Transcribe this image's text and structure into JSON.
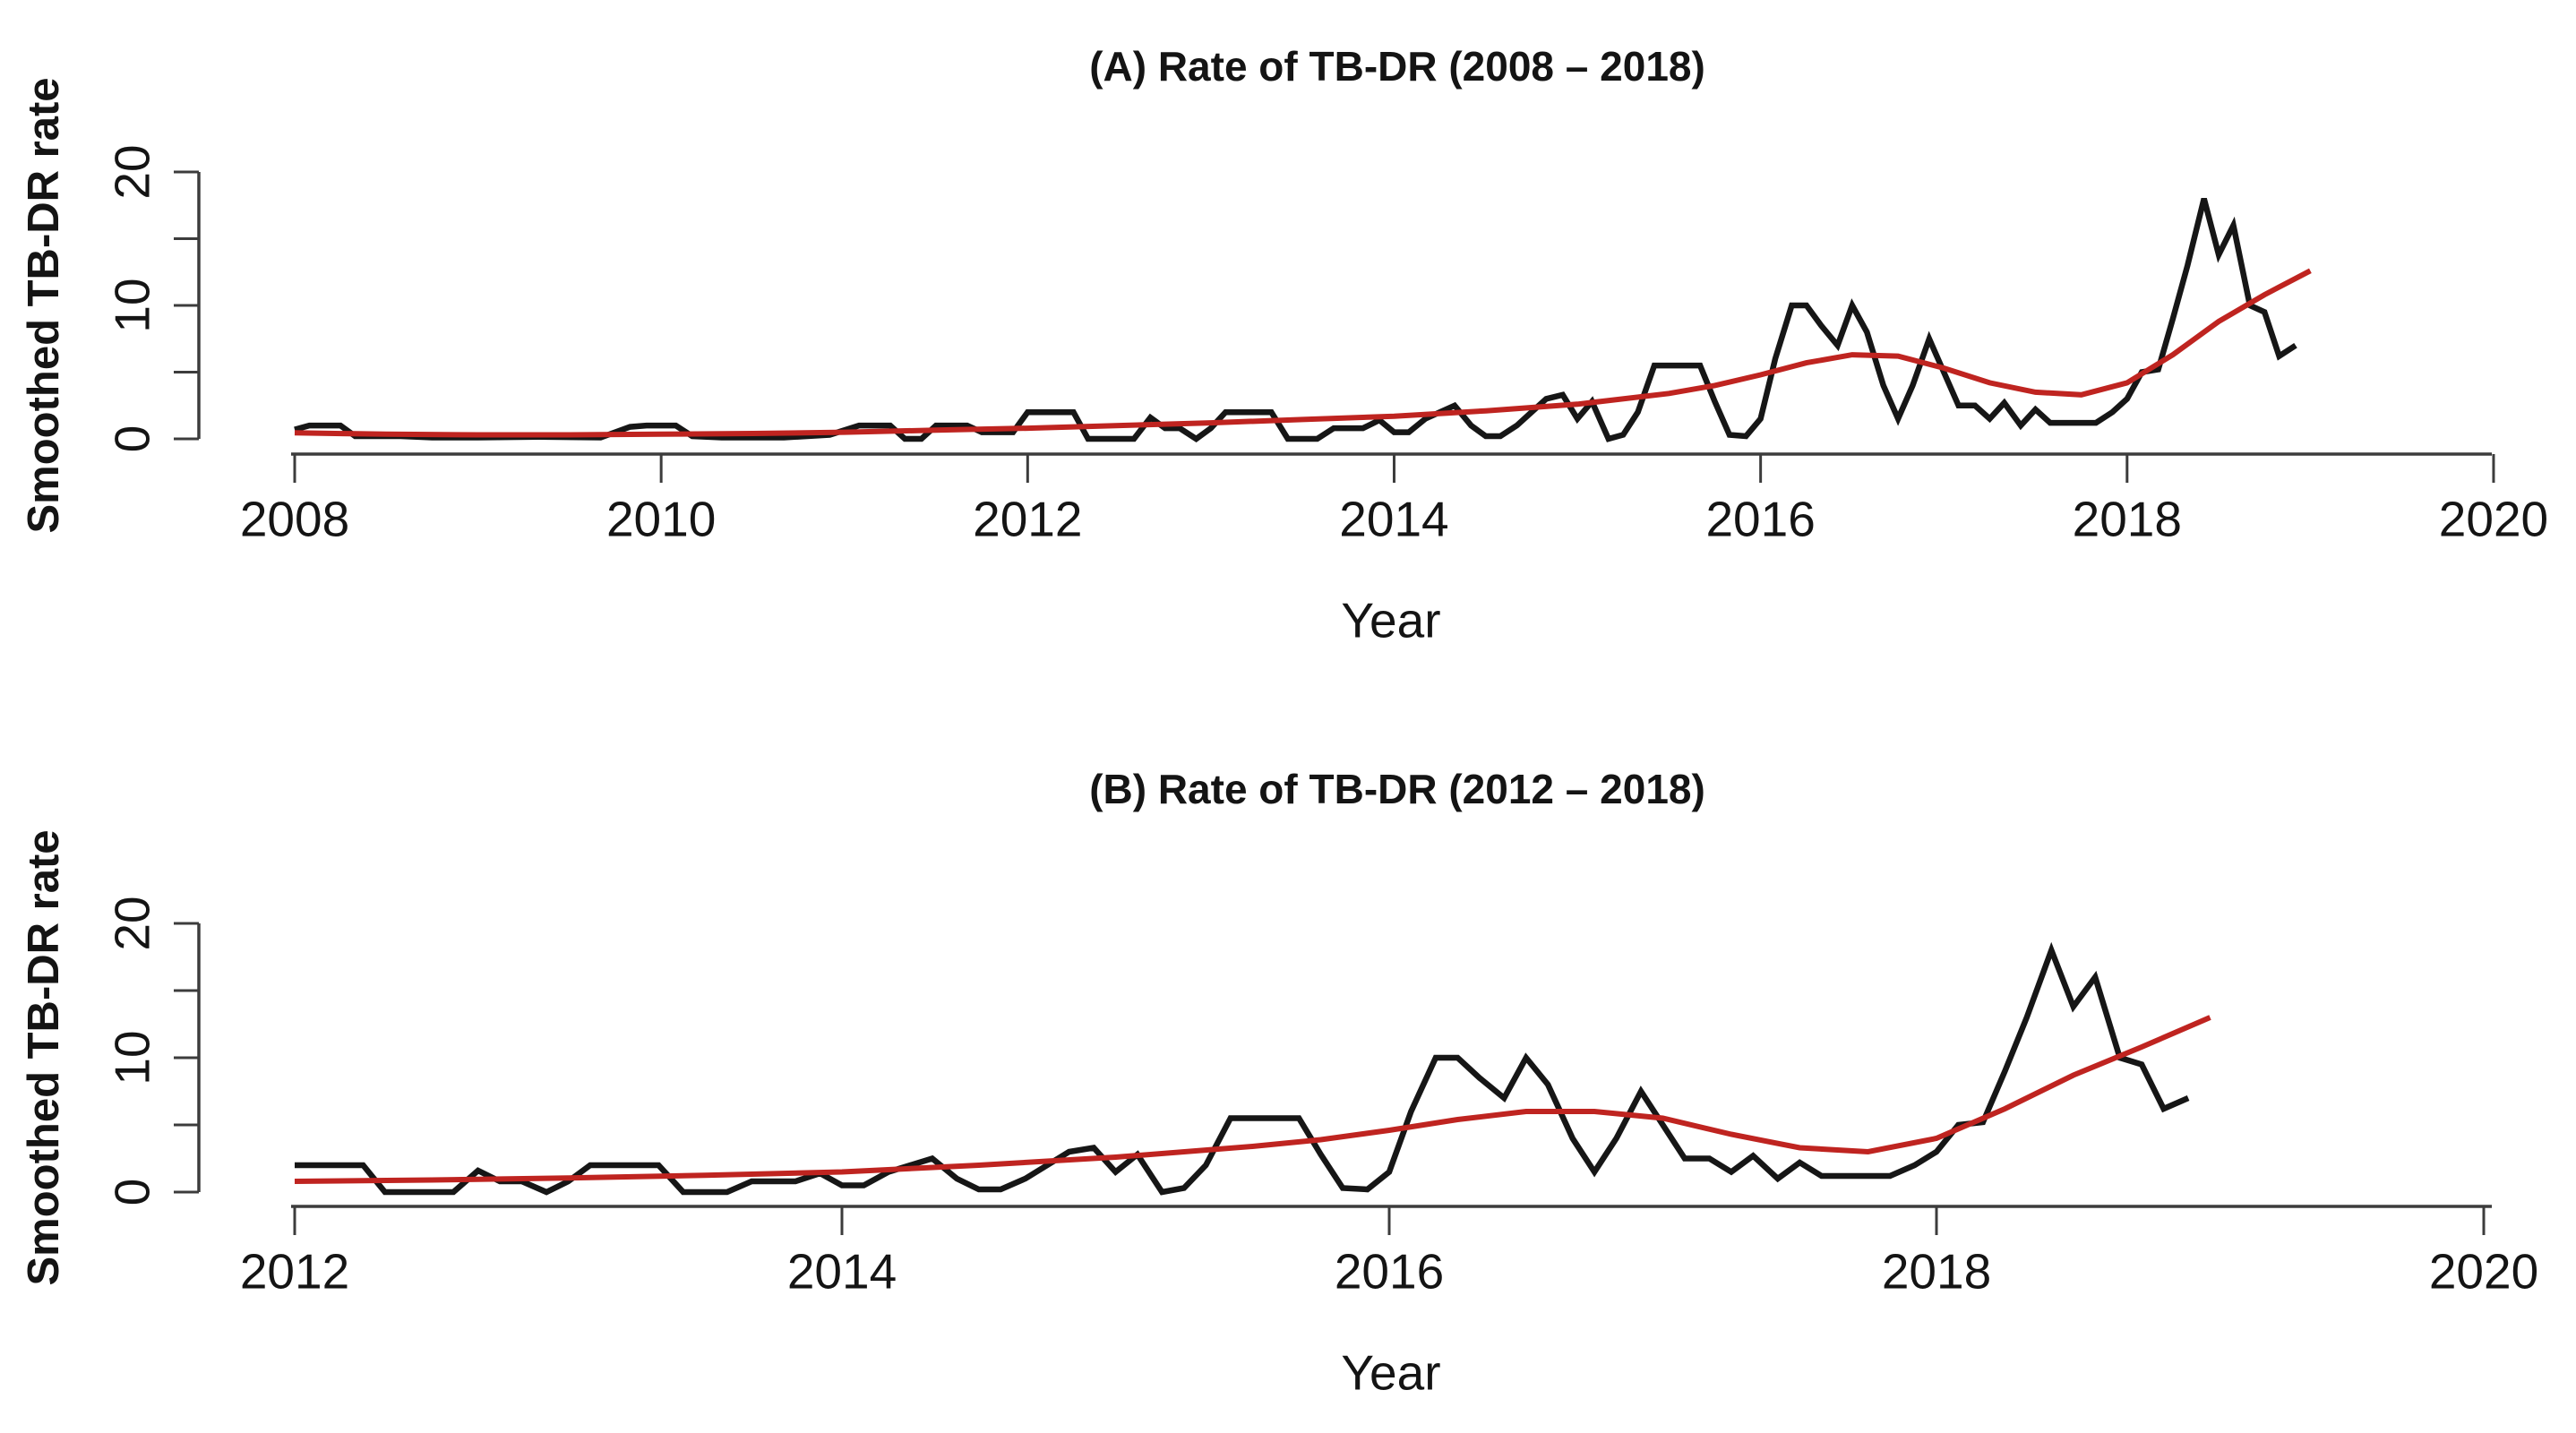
{
  "figure": {
    "background": "#ffffff",
    "colors": {
      "observed_line": "#161616",
      "smoothed_line": "#bf2420",
      "axis": "#3c3c3c",
      "text": "#141414"
    }
  },
  "chart_data": [
    {
      "type": "line",
      "title": "(A) Rate of TB-DR (2008 – 2018)",
      "xlabel": "Year",
      "ylabel": "Smoothed TB-DR rate",
      "xlim": [
        2008,
        2020
      ],
      "ylim": [
        0,
        20
      ],
      "x_ticks": [
        2008,
        2010,
        2012,
        2014,
        2016,
        2018,
        2020
      ],
      "y_ticks": [
        0,
        10,
        20
      ],
      "y_minor_ticks": [
        5,
        15
      ],
      "grid": false,
      "legend": "none",
      "series": [
        {
          "name": "observed-rate",
          "color": "#161616",
          "points": [
            [
              2008.0,
              0.7
            ],
            [
              2008.08,
              1
            ],
            [
              2008.17,
              1
            ],
            [
              2008.25,
              1
            ],
            [
              2008.33,
              0.2
            ],
            [
              2008.58,
              0.2
            ],
            [
              2008.75,
              0.1
            ],
            [
              2009.0,
              0.1
            ],
            [
              2009.33,
              0.15
            ],
            [
              2009.67,
              0.1
            ],
            [
              2009.83,
              0.9
            ],
            [
              2009.92,
              1
            ],
            [
              2010.08,
              1
            ],
            [
              2010.17,
              0.2
            ],
            [
              2010.33,
              0.1
            ],
            [
              2010.67,
              0.1
            ],
            [
              2010.92,
              0.3
            ],
            [
              2011.08,
              1
            ],
            [
              2011.17,
              1
            ],
            [
              2011.25,
              1
            ],
            [
              2011.33,
              0
            ],
            [
              2011.42,
              0
            ],
            [
              2011.5,
              1
            ],
            [
              2011.58,
              1
            ],
            [
              2011.67,
              1
            ],
            [
              2011.75,
              0.5
            ],
            [
              2011.83,
              0.5
            ],
            [
              2011.92,
              0.5
            ],
            [
              2012.0,
              2
            ],
            [
              2012.08,
              2
            ],
            [
              2012.17,
              2
            ],
            [
              2012.25,
              2
            ],
            [
              2012.33,
              0
            ],
            [
              2012.42,
              0
            ],
            [
              2012.5,
              0
            ],
            [
              2012.58,
              0
            ],
            [
              2012.67,
              1.6
            ],
            [
              2012.75,
              0.8
            ],
            [
              2012.83,
              0.8
            ],
            [
              2012.92,
              0
            ],
            [
              2013.0,
              0.8
            ],
            [
              2013.08,
              2
            ],
            [
              2013.17,
              2
            ],
            [
              2013.25,
              2
            ],
            [
              2013.33,
              2
            ],
            [
              2013.42,
              0
            ],
            [
              2013.5,
              0
            ],
            [
              2013.58,
              0
            ],
            [
              2013.67,
              0.8
            ],
            [
              2013.75,
              0.8
            ],
            [
              2013.83,
              0.8
            ],
            [
              2013.92,
              1.4
            ],
            [
              2014.0,
              0.5
            ],
            [
              2014.08,
              0.5
            ],
            [
              2014.17,
              1.5
            ],
            [
              2014.25,
              2
            ],
            [
              2014.33,
              2.5
            ],
            [
              2014.42,
              1
            ],
            [
              2014.5,
              0.2
            ],
            [
              2014.58,
              0.2
            ],
            [
              2014.67,
              1
            ],
            [
              2014.75,
              2
            ],
            [
              2014.83,
              3
            ],
            [
              2014.92,
              3.3
            ],
            [
              2015.0,
              1.5
            ],
            [
              2015.08,
              2.8
            ],
            [
              2015.17,
              0
            ],
            [
              2015.25,
              0.3
            ],
            [
              2015.33,
              2
            ],
            [
              2015.42,
              5.5
            ],
            [
              2015.5,
              5.5
            ],
            [
              2015.58,
              5.5
            ],
            [
              2015.67,
              5.5
            ],
            [
              2015.75,
              2.8
            ],
            [
              2015.83,
              0.3
            ],
            [
              2015.92,
              0.2
            ],
            [
              2016.0,
              1.5
            ],
            [
              2016.08,
              6
            ],
            [
              2016.17,
              10
            ],
            [
              2016.25,
              10
            ],
            [
              2016.33,
              8.5
            ],
            [
              2016.42,
              7
            ],
            [
              2016.5,
              10
            ],
            [
              2016.58,
              8
            ],
            [
              2016.67,
              4
            ],
            [
              2016.75,
              1.5
            ],
            [
              2016.83,
              4
            ],
            [
              2016.92,
              7.5
            ],
            [
              2017.0,
              5
            ],
            [
              2017.08,
              2.5
            ],
            [
              2017.17,
              2.5
            ],
            [
              2017.25,
              1.5
            ],
            [
              2017.33,
              2.7
            ],
            [
              2017.42,
              1
            ],
            [
              2017.5,
              2.2
            ],
            [
              2017.58,
              1.2
            ],
            [
              2017.67,
              1.2
            ],
            [
              2017.75,
              1.2
            ],
            [
              2017.83,
              1.2
            ],
            [
              2017.92,
              2
            ],
            [
              2018.0,
              3
            ],
            [
              2018.08,
              5
            ],
            [
              2018.17,
              5.2
            ],
            [
              2018.25,
              9
            ],
            [
              2018.33,
              13
            ],
            [
              2018.42,
              18
            ],
            [
              2018.5,
              13.8
            ],
            [
              2018.58,
              16
            ],
            [
              2018.67,
              10
            ],
            [
              2018.75,
              9.5
            ],
            [
              2018.83,
              6.2
            ],
            [
              2018.92,
              7
            ]
          ]
        },
        {
          "name": "smoothed-trend",
          "color": "#bf2420",
          "points": [
            [
              2008.0,
              0.45
            ],
            [
              2008.5,
              0.35
            ],
            [
              2009.0,
              0.3
            ],
            [
              2009.5,
              0.3
            ],
            [
              2010.0,
              0.35
            ],
            [
              2010.5,
              0.4
            ],
            [
              2011.0,
              0.5
            ],
            [
              2011.5,
              0.65
            ],
            [
              2012.0,
              0.8
            ],
            [
              2012.5,
              1.0
            ],
            [
              2013.0,
              1.2
            ],
            [
              2013.5,
              1.45
            ],
            [
              2014.0,
              1.7
            ],
            [
              2014.5,
              2.1
            ],
            [
              2015.0,
              2.6
            ],
            [
              2015.5,
              3.4
            ],
            [
              2015.75,
              4.0
            ],
            [
              2016.0,
              4.8
            ],
            [
              2016.25,
              5.7
            ],
            [
              2016.5,
              6.3
            ],
            [
              2016.75,
              6.2
            ],
            [
              2017.0,
              5.3
            ],
            [
              2017.25,
              4.2
            ],
            [
              2017.5,
              3.5
            ],
            [
              2017.75,
              3.3
            ],
            [
              2018.0,
              4.2
            ],
            [
              2018.25,
              6.3
            ],
            [
              2018.5,
              8.8
            ],
            [
              2018.75,
              10.8
            ],
            [
              2019.0,
              12.6
            ]
          ]
        }
      ]
    },
    {
      "type": "line",
      "title": "(B) Rate of TB-DR (2012 – 2018)",
      "xlabel": "Year",
      "ylabel": "Smoothed TB-DR rate",
      "xlim": [
        2012,
        2020
      ],
      "ylim": [
        0,
        20
      ],
      "x_ticks": [
        2012,
        2014,
        2016,
        2018,
        2020
      ],
      "y_ticks": [
        0,
        10,
        20
      ],
      "y_minor_ticks": [
        5,
        15
      ],
      "grid": false,
      "legend": "none",
      "series": [
        {
          "name": "observed-rate",
          "color": "#161616",
          "points": [
            [
              2012.0,
              2
            ],
            [
              2012.08,
              2
            ],
            [
              2012.17,
              2
            ],
            [
              2012.25,
              2
            ],
            [
              2012.33,
              0
            ],
            [
              2012.42,
              0
            ],
            [
              2012.5,
              0
            ],
            [
              2012.58,
              0
            ],
            [
              2012.67,
              1.6
            ],
            [
              2012.75,
              0.8
            ],
            [
              2012.83,
              0.8
            ],
            [
              2012.92,
              0
            ],
            [
              2013.0,
              0.8
            ],
            [
              2013.08,
              2
            ],
            [
              2013.17,
              2
            ],
            [
              2013.25,
              2
            ],
            [
              2013.33,
              2
            ],
            [
              2013.42,
              0
            ],
            [
              2013.5,
              0
            ],
            [
              2013.58,
              0
            ],
            [
              2013.67,
              0.8
            ],
            [
              2013.75,
              0.8
            ],
            [
              2013.83,
              0.8
            ],
            [
              2013.92,
              1.4
            ],
            [
              2014.0,
              0.5
            ],
            [
              2014.08,
              0.5
            ],
            [
              2014.17,
              1.5
            ],
            [
              2014.25,
              2
            ],
            [
              2014.33,
              2.5
            ],
            [
              2014.42,
              1
            ],
            [
              2014.5,
              0.2
            ],
            [
              2014.58,
              0.2
            ],
            [
              2014.67,
              1
            ],
            [
              2014.75,
              2
            ],
            [
              2014.83,
              3
            ],
            [
              2014.92,
              3.3
            ],
            [
              2015.0,
              1.5
            ],
            [
              2015.08,
              2.8
            ],
            [
              2015.17,
              0
            ],
            [
              2015.25,
              0.3
            ],
            [
              2015.33,
              2
            ],
            [
              2015.42,
              5.5
            ],
            [
              2015.5,
              5.5
            ],
            [
              2015.58,
              5.5
            ],
            [
              2015.67,
              5.5
            ],
            [
              2015.75,
              2.8
            ],
            [
              2015.83,
              0.3
            ],
            [
              2015.92,
              0.2
            ],
            [
              2016.0,
              1.5
            ],
            [
              2016.08,
              6
            ],
            [
              2016.17,
              10
            ],
            [
              2016.25,
              10
            ],
            [
              2016.33,
              8.5
            ],
            [
              2016.42,
              7
            ],
            [
              2016.5,
              10
            ],
            [
              2016.58,
              8
            ],
            [
              2016.67,
              4
            ],
            [
              2016.75,
              1.5
            ],
            [
              2016.83,
              4
            ],
            [
              2016.92,
              7.5
            ],
            [
              2017.0,
              5
            ],
            [
              2017.08,
              2.5
            ],
            [
              2017.17,
              2.5
            ],
            [
              2017.25,
              1.5
            ],
            [
              2017.33,
              2.7
            ],
            [
              2017.42,
              1
            ],
            [
              2017.5,
              2.2
            ],
            [
              2017.58,
              1.2
            ],
            [
              2017.67,
              1.2
            ],
            [
              2017.75,
              1.2
            ],
            [
              2017.83,
              1.2
            ],
            [
              2017.92,
              2
            ],
            [
              2018.0,
              3
            ],
            [
              2018.08,
              5
            ],
            [
              2018.17,
              5.2
            ],
            [
              2018.25,
              9
            ],
            [
              2018.33,
              13
            ],
            [
              2018.42,
              18
            ],
            [
              2018.5,
              13.8
            ],
            [
              2018.58,
              16
            ],
            [
              2018.67,
              10
            ],
            [
              2018.75,
              9.5
            ],
            [
              2018.83,
              6.2
            ],
            [
              2018.92,
              7
            ]
          ]
        },
        {
          "name": "smoothed-trend",
          "color": "#bf2420",
          "points": [
            [
              2012.0,
              0.8
            ],
            [
              2012.5,
              0.9
            ],
            [
              2013.0,
              1.05
            ],
            [
              2013.5,
              1.25
            ],
            [
              2014.0,
              1.5
            ],
            [
              2014.5,
              2.0
            ],
            [
              2015.0,
              2.6
            ],
            [
              2015.5,
              3.4
            ],
            [
              2015.75,
              3.9
            ],
            [
              2016.0,
              4.6
            ],
            [
              2016.25,
              5.4
            ],
            [
              2016.5,
              6.0
            ],
            [
              2016.75,
              6.0
            ],
            [
              2017.0,
              5.5
            ],
            [
              2017.25,
              4.3
            ],
            [
              2017.5,
              3.3
            ],
            [
              2017.75,
              3.0
            ],
            [
              2018.0,
              4.0
            ],
            [
              2018.25,
              6.2
            ],
            [
              2018.5,
              8.7
            ],
            [
              2018.75,
              10.8
            ],
            [
              2019.0,
              13.0
            ]
          ]
        }
      ]
    }
  ]
}
